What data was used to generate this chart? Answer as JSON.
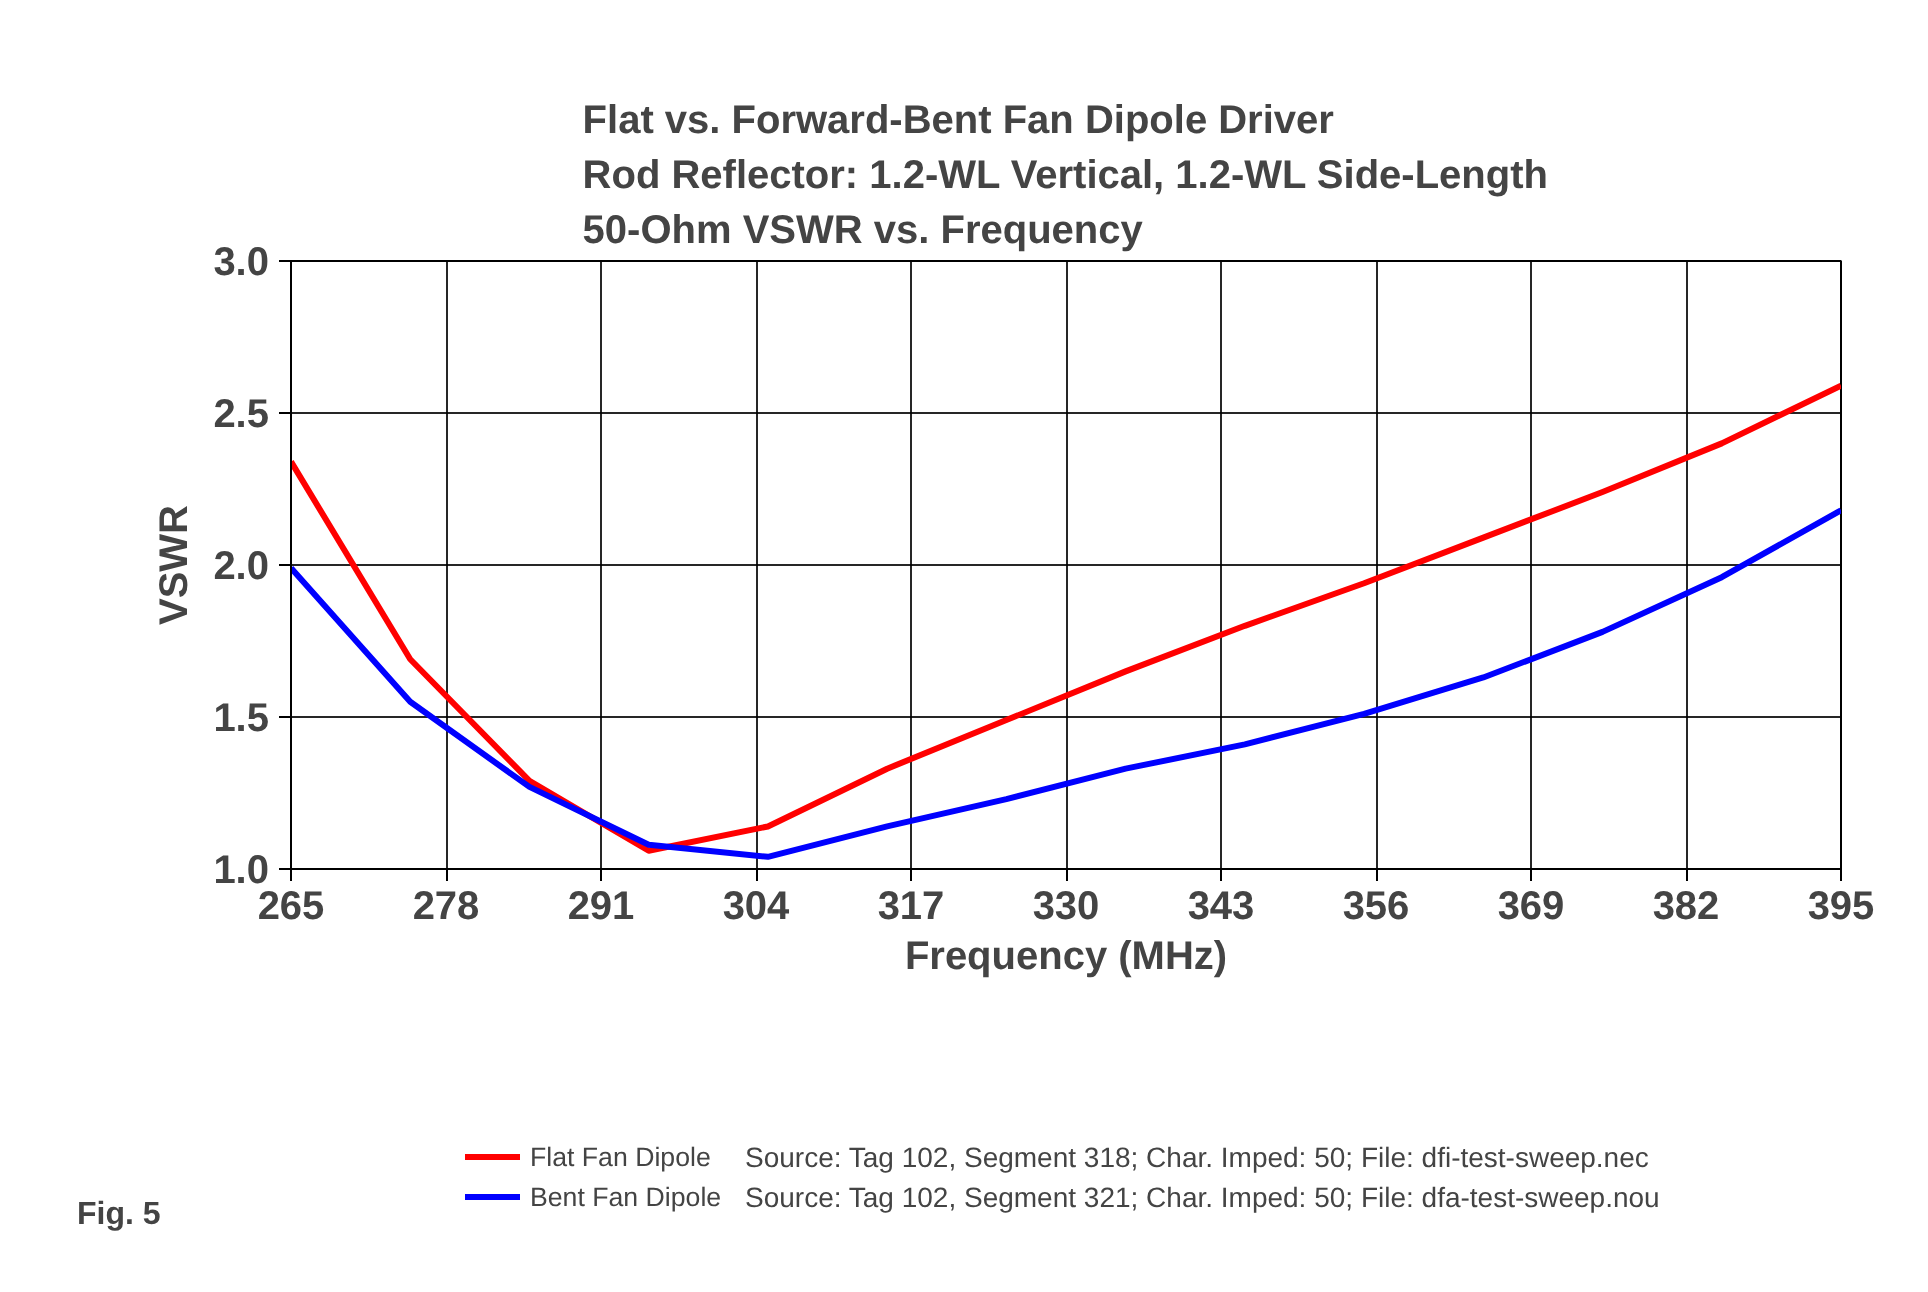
{
  "chart_data": {
    "type": "line",
    "title": "Flat vs. Forward-Bent Fan Dipole Driver\nRod Reflector: 1.2-WL Vertical, 1.2-WL Side-Length\n50-Ohm VSWR vs. Frequency",
    "xlabel": "Frequency (MHz)",
    "ylabel": "VSWR",
    "x": [
      265,
      275,
      285,
      295,
      305,
      315,
      325,
      335,
      345,
      355,
      365,
      375,
      385,
      395
    ],
    "series": [
      {
        "name": "Flat Fan Dipole",
        "color": "#ff0000",
        "values": [
          2.34,
          1.69,
          1.29,
          1.06,
          1.14,
          1.33,
          1.49,
          1.65,
          1.8,
          1.94,
          2.09,
          2.24,
          2.4,
          2.59
        ]
      },
      {
        "name": "Bent Fan Dipole",
        "color": "#0000ff",
        "values": [
          1.99,
          1.55,
          1.27,
          1.08,
          1.04,
          1.14,
          1.23,
          1.33,
          1.41,
          1.51,
          1.63,
          1.78,
          1.96,
          2.18
        ]
      }
    ],
    "xlim": [
      265,
      395
    ],
    "xticks": [
      265,
      278,
      291,
      304,
      317,
      330,
      343,
      356,
      369,
      382,
      395
    ],
    "ylim": [
      1.0,
      3.0
    ],
    "yticks": [
      {
        "value": 1.0,
        "label": "1.0"
      },
      {
        "value": 1.5,
        "label": "1.5"
      },
      {
        "value": 2.0,
        "label": "2.0"
      },
      {
        "value": 2.5,
        "label": "2.5"
      },
      {
        "value": 3.0,
        "label": "3.0"
      }
    ],
    "grid": true,
    "legend": "bottom",
    "marker": "none",
    "line_style": "solid",
    "annotations": [
      "Source: Tag 102, Segment 318; Char. Imped: 50; File: dfi-test-sweep.nec",
      "Source: Tag 102, Segment 321; Char. Imped: 50; File: dfa-test-sweep.nou",
      "Fig. 5"
    ]
  }
}
